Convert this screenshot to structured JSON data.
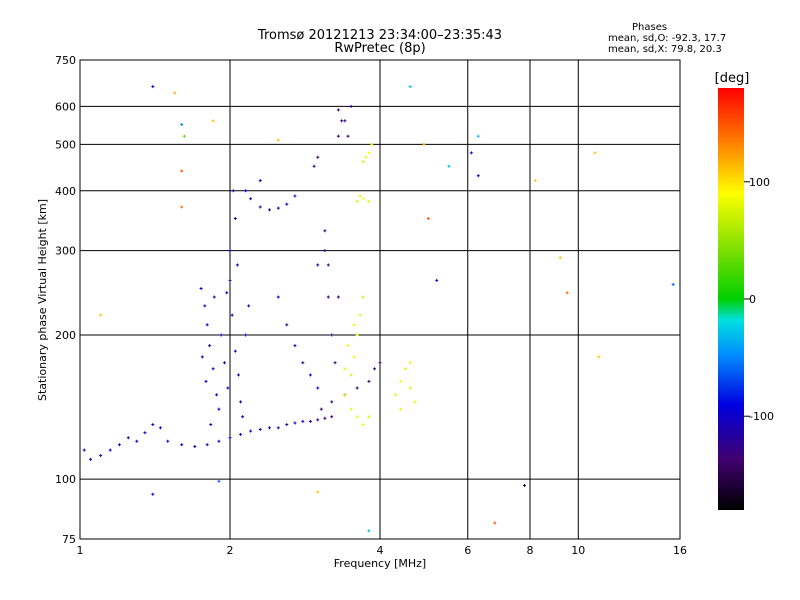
{
  "header": {
    "title": "Tromsø 20121213 23:34:00–23:35:43",
    "subtitle": "RwPretec (8p)",
    "info_title": "Phases",
    "info_line1": "mean, sd,O: -92.3, 17.7",
    "info_line2": "mean, sd,X:  79.8, 20.3"
  },
  "colorbar": {
    "label": "[deg]",
    "ticks": [
      "100",
      "0",
      "-100"
    ],
    "tick_values": [
      100,
      0,
      -100
    ],
    "range": [
      -180,
      180
    ]
  },
  "chart_data": {
    "type": "scatter",
    "xlabel": "Frequency [MHz]",
    "ylabel": "Stationary phase Virtual Height [km]",
    "x_scale": "log",
    "y_scale": "log",
    "xlim": [
      1,
      16
    ],
    "ylim": [
      75,
      750
    ],
    "x_ticks": [
      1,
      2,
      4,
      6,
      8,
      10,
      16
    ],
    "x_tick_labels": [
      "1",
      "2",
      "4",
      "6",
      "8",
      "10",
      "16"
    ],
    "y_ticks": [
      75,
      100,
      200,
      300,
      400,
      500,
      600,
      750
    ],
    "y_tick_labels": [
      "75",
      "100",
      "200",
      "300",
      "400",
      "500",
      "600",
      "750"
    ],
    "grid": true,
    "color_dimension": "phase (deg)",
    "series": [
      {
        "points": [
          [
            1.02,
            115,
            -95
          ],
          [
            1.05,
            110,
            -100
          ],
          [
            1.1,
            112,
            -105
          ],
          [
            1.15,
            115,
            -98
          ],
          [
            1.2,
            118,
            -102
          ],
          [
            1.25,
            122,
            -100
          ],
          [
            1.3,
            120,
            -95
          ],
          [
            1.35,
            125,
            -100
          ],
          [
            1.4,
            130,
            -98
          ],
          [
            1.45,
            128,
            -102
          ],
          [
            1.5,
            120,
            -95
          ],
          [
            1.6,
            118,
            -100
          ],
          [
            1.7,
            117,
            -105
          ],
          [
            1.8,
            118,
            -110
          ],
          [
            1.9,
            120,
            -100
          ],
          [
            2.0,
            122,
            -105
          ],
          [
            2.1,
            124,
            -100
          ],
          [
            2.2,
            126,
            -110
          ],
          [
            2.3,
            127,
            -105
          ],
          [
            2.4,
            128,
            -100
          ],
          [
            2.5,
            128,
            -110
          ],
          [
            2.6,
            130,
            -115
          ],
          [
            2.7,
            131,
            -105
          ],
          [
            2.8,
            132,
            -110
          ],
          [
            2.9,
            132,
            -115
          ],
          [
            3.0,
            133,
            -120
          ],
          [
            3.1,
            134,
            -125
          ],
          [
            3.2,
            135,
            -130
          ]
        ]
      },
      {
        "points": [
          [
            1.75,
            250,
            -100
          ],
          [
            1.78,
            230,
            -105
          ],
          [
            1.8,
            210,
            -100
          ],
          [
            1.82,
            190,
            -95
          ],
          [
            1.85,
            170,
            -100
          ],
          [
            1.88,
            150,
            -105
          ],
          [
            1.9,
            140,
            -110
          ],
          [
            1.76,
            180,
            -100
          ],
          [
            1.79,
            160,
            -105
          ],
          [
            1.83,
            130,
            -100
          ],
          [
            1.86,
            240,
            -110
          ],
          [
            1.92,
            200,
            -100
          ],
          [
            1.95,
            175,
            -105
          ],
          [
            1.98,
            155,
            -100
          ],
          [
            2.0,
            260,
            -115
          ],
          [
            2.02,
            220,
            -110
          ],
          [
            2.05,
            185,
            -105
          ],
          [
            2.08,
            165,
            -100
          ],
          [
            2.1,
            145,
            -110
          ],
          [
            2.12,
            135,
            -105
          ],
          [
            2.0,
            300,
            -100
          ],
          [
            2.03,
            400,
            -110
          ],
          [
            2.05,
            350,
            -105
          ],
          [
            2.07,
            280,
            -115
          ],
          [
            1.97,
            245,
            -100
          ],
          [
            2.15,
            200,
            -110
          ],
          [
            2.18,
            230,
            -115
          ]
        ]
      },
      {
        "points": [
          [
            2.15,
            400,
            -100
          ],
          [
            2.2,
            385,
            -110
          ],
          [
            2.3,
            370,
            -115
          ],
          [
            2.4,
            365,
            -110
          ],
          [
            2.5,
            368,
            -105
          ],
          [
            2.6,
            375,
            -100
          ],
          [
            2.7,
            390,
            -110
          ],
          [
            2.5,
            240,
            -100
          ],
          [
            2.6,
            210,
            -110
          ],
          [
            2.7,
            190,
            -105
          ],
          [
            2.8,
            175,
            -110
          ],
          [
            2.9,
            165,
            -100
          ],
          [
            3.0,
            155,
            -110
          ],
          [
            3.0,
            280,
            -120
          ],
          [
            3.1,
            300,
            -125
          ],
          [
            3.15,
            240,
            -130
          ],
          [
            3.2,
            200,
            -125
          ],
          [
            3.25,
            175,
            -130
          ]
        ]
      },
      {
        "points": [
          [
            2.95,
            450,
            -130
          ],
          [
            3.0,
            470,
            -135
          ],
          [
            3.3,
            520,
            -130
          ],
          [
            3.35,
            560,
            -135
          ],
          [
            3.3,
            590,
            -140
          ],
          [
            3.1,
            330,
            -130
          ],
          [
            3.15,
            280,
            -135
          ],
          [
            3.3,
            240,
            -130
          ],
          [
            3.4,
            560,
            -125
          ],
          [
            3.45,
            520,
            -130
          ],
          [
            3.5,
            600,
            -120
          ],
          [
            3.05,
            140,
            -135
          ],
          [
            3.2,
            145,
            -130
          ],
          [
            3.4,
            150,
            -135
          ],
          [
            3.6,
            155,
            -140
          ],
          [
            3.8,
            160,
            -135
          ],
          [
            3.9,
            170,
            -130
          ],
          [
            4.0,
            175,
            -125
          ]
        ]
      },
      {
        "points": [
          [
            3.4,
            150,
            80
          ],
          [
            3.5,
            165,
            75
          ],
          [
            3.55,
            180,
            80
          ],
          [
            3.6,
            200,
            85
          ],
          [
            3.65,
            220,
            80
          ],
          [
            3.7,
            240,
            75
          ],
          [
            3.5,
            140,
            80
          ],
          [
            3.6,
            135,
            85
          ],
          [
            3.7,
            130,
            80
          ],
          [
            3.8,
            135,
            75
          ],
          [
            3.4,
            170,
            80
          ],
          [
            3.45,
            190,
            85
          ],
          [
            3.55,
            210,
            80
          ],
          [
            3.6,
            380,
            75
          ],
          [
            3.65,
            390,
            80
          ],
          [
            3.7,
            385,
            85
          ],
          [
            3.8,
            380,
            80
          ],
          [
            3.7,
            460,
            75
          ],
          [
            3.75,
            470,
            80
          ],
          [
            3.8,
            480,
            85
          ],
          [
            3.85,
            500,
            80
          ],
          [
            4.3,
            150,
            80
          ],
          [
            4.4,
            160,
            85
          ],
          [
            4.5,
            170,
            80
          ],
          [
            4.6,
            155,
            75
          ],
          [
            4.7,
            145,
            80
          ],
          [
            4.4,
            140,
            85
          ],
          [
            4.6,
            175,
            80
          ]
        ]
      },
      {
        "points": [
          [
            1.4,
            660,
            -100
          ],
          [
            1.55,
            640,
            120
          ],
          [
            1.6,
            550,
            -50
          ],
          [
            1.6,
            370,
            140
          ],
          [
            1.6,
            440,
            150
          ],
          [
            1.62,
            520,
            30
          ],
          [
            1.85,
            560,
            110
          ],
          [
            2.3,
            420,
            -90
          ],
          [
            2.5,
            510,
            110
          ],
          [
            4.6,
            660,
            -30
          ],
          [
            4.9,
            500,
            120
          ],
          [
            5.0,
            350,
            150
          ],
          [
            5.5,
            450,
            -30
          ],
          [
            6.1,
            480,
            -100
          ],
          [
            6.3,
            520,
            -30
          ],
          [
            6.3,
            430,
            -100
          ],
          [
            8.2,
            420,
            110
          ],
          [
            9.2,
            290,
            110
          ],
          [
            9.5,
            245,
            140
          ],
          [
            10.8,
            480,
            110
          ],
          [
            11.0,
            180,
            110
          ],
          [
            15.5,
            255,
            -60
          ],
          [
            7.8,
            97,
            -150
          ],
          [
            6.8,
            81,
            150
          ],
          [
            3.8,
            78,
            -30
          ],
          [
            3.0,
            94,
            110
          ],
          [
            1.9,
            99,
            -60
          ],
          [
            1.4,
            93,
            -100
          ],
          [
            1.1,
            220,
            110
          ],
          [
            5.2,
            260,
            -100
          ]
        ]
      }
    ]
  }
}
